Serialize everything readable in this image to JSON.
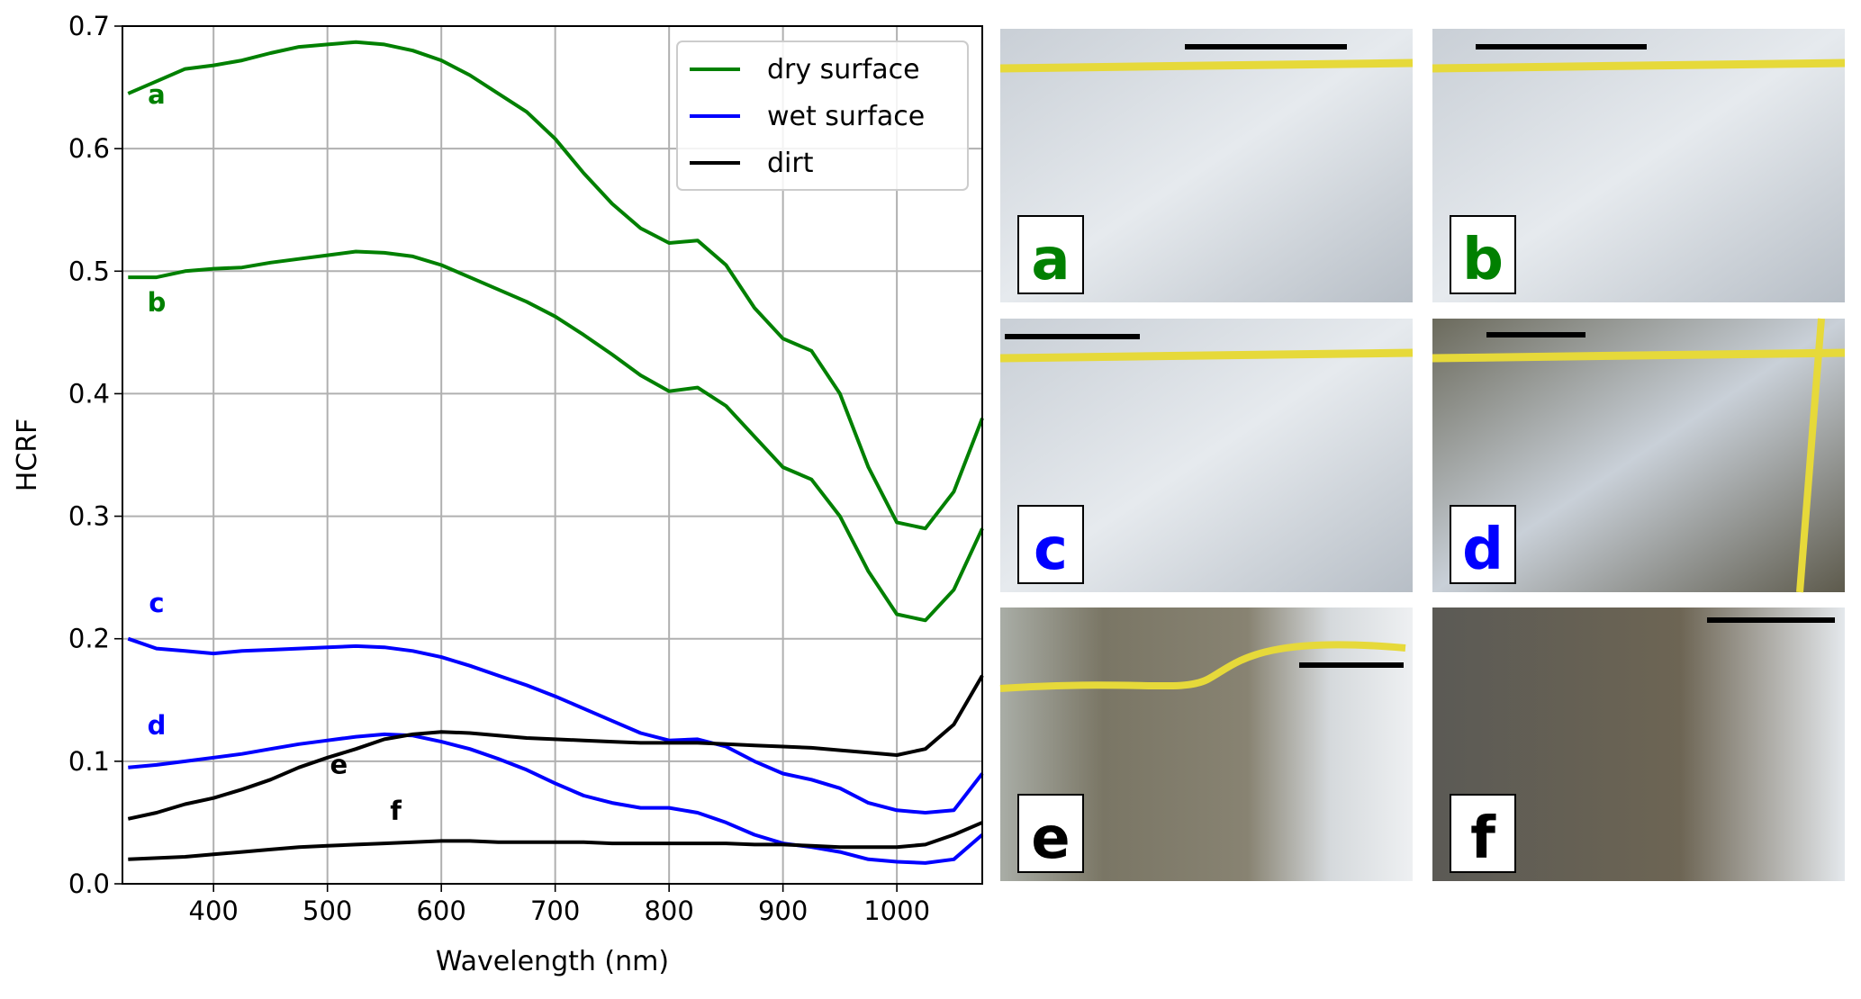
{
  "chart_data": {
    "type": "line",
    "x_label": "Wavelength (nm)",
    "y_label": "HCRF",
    "x": [
      325,
      350,
      375,
      400,
      425,
      450,
      475,
      500,
      525,
      550,
      575,
      600,
      625,
      650,
      675,
      700,
      725,
      750,
      775,
      800,
      825,
      850,
      875,
      900,
      925,
      950,
      975,
      1000,
      1025,
      1050,
      1075
    ],
    "xlim": [
      320,
      1075
    ],
    "xticks": [
      400,
      500,
      600,
      700,
      800,
      900,
      1000
    ],
    "ylim": [
      0,
      0.7
    ],
    "yticks": [
      {
        "value": 0,
        "label": "0.0"
      },
      0.1,
      0.2,
      0.3,
      0.4,
      0.5,
      0.6,
      0.7
    ],
    "grid": true,
    "legend_position": "upper right",
    "legend": [
      {
        "name": "dry surface",
        "color": "#008000"
      },
      {
        "name": "wet surface",
        "color": "#0000ff"
      },
      {
        "name": "dirt",
        "color": "#000000"
      }
    ],
    "series": [
      {
        "name": "a",
        "group": 0,
        "color": "#008000",
        "values": [
          0.645,
          0.655,
          0.665,
          0.668,
          0.672,
          0.678,
          0.683,
          0.685,
          0.687,
          0.685,
          0.68,
          0.672,
          0.66,
          0.645,
          0.63,
          0.608,
          0.58,
          0.555,
          0.535,
          0.523,
          0.525,
          0.505,
          0.47,
          0.445,
          0.435,
          0.4,
          0.34,
          0.295,
          0.29,
          0.32,
          0.38
        ]
      },
      {
        "name": "b",
        "group": 0,
        "color": "#008000",
        "values": [
          0.495,
          0.495,
          0.5,
          0.502,
          0.503,
          0.507,
          0.51,
          0.513,
          0.516,
          0.515,
          0.512,
          0.505,
          0.495,
          0.485,
          0.475,
          0.463,
          0.448,
          0.432,
          0.415,
          0.402,
          0.405,
          0.39,
          0.365,
          0.34,
          0.33,
          0.3,
          0.255,
          0.22,
          0.215,
          0.24,
          0.29
        ]
      },
      {
        "name": "c",
        "group": 1,
        "color": "#0000ff",
        "values": [
          0.2,
          0.192,
          0.19,
          0.188,
          0.19,
          0.191,
          0.192,
          0.193,
          0.194,
          0.193,
          0.19,
          0.185,
          0.178,
          0.17,
          0.162,
          0.153,
          0.143,
          0.133,
          0.123,
          0.117,
          0.118,
          0.112,
          0.1,
          0.09,
          0.085,
          0.078,
          0.066,
          0.06,
          0.058,
          0.06,
          0.09
        ]
      },
      {
        "name": "d",
        "group": 1,
        "color": "#0000ff",
        "values": [
          0.095,
          0.097,
          0.1,
          0.103,
          0.106,
          0.11,
          0.114,
          0.117,
          0.12,
          0.122,
          0.121,
          0.116,
          0.11,
          0.102,
          0.093,
          0.082,
          0.072,
          0.066,
          0.062,
          0.062,
          0.058,
          0.05,
          0.04,
          0.033,
          0.03,
          0.026,
          0.02,
          0.018,
          0.017,
          0.02,
          0.04
        ]
      },
      {
        "name": "e",
        "group": 2,
        "color": "#000000",
        "values": [
          0.053,
          0.058,
          0.065,
          0.07,
          0.077,
          0.085,
          0.095,
          0.103,
          0.11,
          0.118,
          0.122,
          0.124,
          0.123,
          0.121,
          0.119,
          0.118,
          0.117,
          0.116,
          0.115,
          0.115,
          0.115,
          0.114,
          0.113,
          0.112,
          0.111,
          0.109,
          0.107,
          0.105,
          0.11,
          0.13,
          0.17
        ]
      },
      {
        "name": "f",
        "group": 2,
        "color": "#000000",
        "values": [
          0.02,
          0.021,
          0.022,
          0.024,
          0.026,
          0.028,
          0.03,
          0.031,
          0.032,
          0.033,
          0.034,
          0.035,
          0.035,
          0.034,
          0.034,
          0.034,
          0.034,
          0.033,
          0.033,
          0.033,
          0.033,
          0.033,
          0.032,
          0.032,
          0.031,
          0.03,
          0.03,
          0.03,
          0.032,
          0.04,
          0.05
        ]
      }
    ]
  }
}
